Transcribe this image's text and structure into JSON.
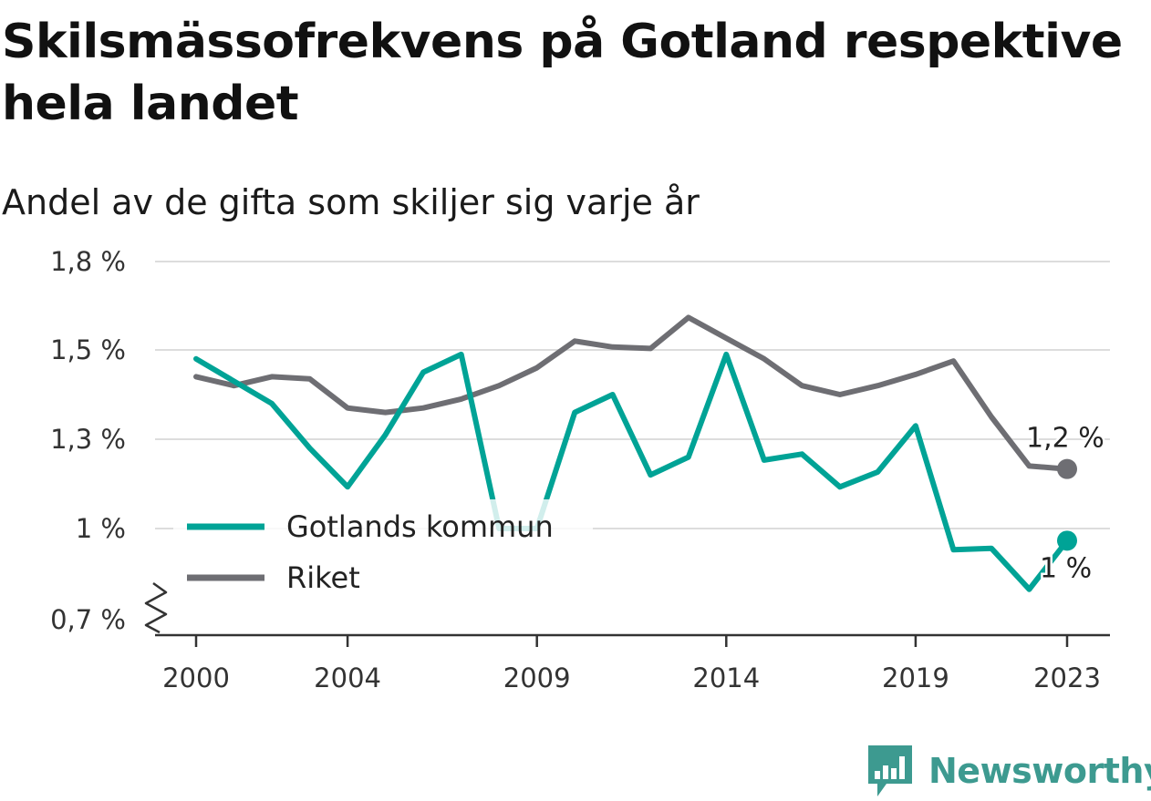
{
  "chart_data": {
    "type": "line",
    "title": "Skilsmässofrekvens på Gotland respektive hela landet",
    "subtitle": "Andel av de gifta som skiljer sig varje år",
    "x": [
      2000,
      2001,
      2002,
      2003,
      2004,
      2005,
      2006,
      2007,
      2008,
      2009,
      2010,
      2011,
      2012,
      2013,
      2014,
      2015,
      2016,
      2017,
      2018,
      2019,
      2020,
      2021,
      2022,
      2023
    ],
    "x_ticks": [
      2000,
      2004,
      2009,
      2014,
      2019,
      2023
    ],
    "x_tick_labels": [
      "2000",
      "2004",
      "2009",
      "2014",
      "2019",
      "2023"
    ],
    "y_ticks": [
      0.7,
      1.0,
      1.3,
      1.5,
      1.8
    ],
    "y_tick_labels": [
      "0,7 %",
      "1 %",
      "1,3 %",
      "1,5 %",
      "1,8 %"
    ],
    "ylim": [
      0.7,
      1.8
    ],
    "y_axis_break": true,
    "grid": true,
    "legend_position": "center-left",
    "series": [
      {
        "name": "Gotlands kommun",
        "color": "#00a396",
        "values": [
          1.48,
          1.43,
          1.38,
          1.27,
          1.14,
          1.31,
          1.45,
          1.49,
          1.0,
          1.0,
          1.36,
          1.4,
          1.18,
          1.24,
          1.49,
          1.23,
          1.25,
          1.14,
          1.19,
          1.33,
          0.93,
          0.935,
          0.8,
          0.96
        ],
        "end_label": "1 %"
      },
      {
        "name": "Riket",
        "color": "#6e6e73",
        "values": [
          1.44,
          1.42,
          1.44,
          1.435,
          1.37,
          1.36,
          1.37,
          1.39,
          1.42,
          1.46,
          1.53,
          1.51,
          1.505,
          1.61,
          1.54,
          1.48,
          1.42,
          1.4,
          1.42,
          1.445,
          1.475,
          1.35,
          1.21,
          1.2
        ],
        "end_label": "1,2 %"
      }
    ]
  },
  "brand": {
    "name": "Newsworthy",
    "logo_icon": "bar-chart-speech-bubble-icon",
    "color": "#3d9a90"
  }
}
